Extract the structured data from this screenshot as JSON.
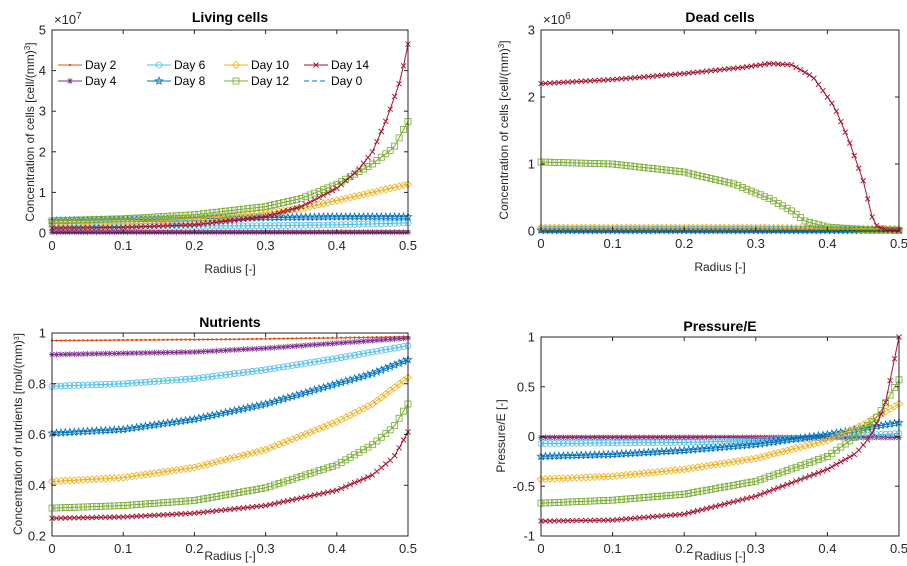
{
  "legend": {
    "entries": [
      {
        "label": "Day 2",
        "color": "#D95319",
        "marker": "dot",
        "dash": false
      },
      {
        "label": "Day 4",
        "color": "#7E2F8E",
        "marker": "asterisk",
        "dash": false
      },
      {
        "label": "Day 6",
        "color": "#4DBEEE",
        "marker": "circle",
        "dash": false
      },
      {
        "label": "Day 8",
        "color": "#0072BD",
        "marker": "star",
        "dash": false
      },
      {
        "label": "Day 10",
        "color": "#EDB120",
        "marker": "diamond",
        "dash": false
      },
      {
        "label": "Day 12",
        "color": "#77AC30",
        "marker": "square",
        "dash": false
      },
      {
        "label": "Day 14",
        "color": "#A2142F",
        "marker": "cross",
        "dash": false
      },
      {
        "label": "Day 0",
        "color": "#0072BD",
        "marker": "none",
        "dash": true
      }
    ]
  },
  "chart_data": [
    {
      "type": "line",
      "title": "Living cells",
      "xlabel": "Radius [-]",
      "ylabel": "Concentration of cells [cell/(mm)$^3$]",
      "ylabel_text": "Concentration of cells [cell/(mm)",
      "ylabel_sup": "3",
      "ylabel_close": "]",
      "multiplier_base": "×10",
      "multiplier_exp": "7",
      "xlim": [
        0,
        0.5
      ],
      "ylim": [
        0,
        5
      ],
      "xticks": [
        0,
        0.1,
        0.2,
        0.3,
        0.4,
        0.5
      ],
      "xtick_labels": [
        "0",
        "0.1",
        "0.2",
        "0.3",
        "0.4",
        "0.5"
      ],
      "yticks": [
        0,
        1,
        2,
        3,
        4,
        5
      ],
      "ytick_labels": [
        "0",
        "1",
        "2",
        "3",
        "4",
        "5"
      ],
      "legend_position": "top-left",
      "series": [
        {
          "name": "Day 2",
          "points": [
            [
              0,
              0.05
            ],
            [
              0.5,
              0.05
            ]
          ]
        },
        {
          "name": "Day 4",
          "points": [
            [
              0,
              0.02
            ],
            [
              0.5,
              0.02
            ]
          ]
        },
        {
          "name": "Day 6",
          "points": [
            [
              0,
              0.15
            ],
            [
              0.3,
              0.18
            ],
            [
              0.4,
              0.2
            ],
            [
              0.5,
              0.25
            ]
          ]
        },
        {
          "name": "Day 8",
          "points": [
            [
              0,
              0.3
            ],
            [
              0.3,
              0.38
            ],
            [
              0.4,
              0.4
            ],
            [
              0.5,
              0.4
            ]
          ]
        },
        {
          "name": "Day 10",
          "points": [
            [
              0,
              0.25
            ],
            [
              0.1,
              0.28
            ],
            [
              0.2,
              0.35
            ],
            [
              0.3,
              0.5
            ],
            [
              0.35,
              0.6
            ],
            [
              0.4,
              0.8
            ],
            [
              0.45,
              1.0
            ],
            [
              0.5,
              1.2
            ]
          ]
        },
        {
          "name": "Day 12",
          "points": [
            [
              0,
              0.3
            ],
            [
              0.1,
              0.35
            ],
            [
              0.2,
              0.45
            ],
            [
              0.3,
              0.65
            ],
            [
              0.35,
              0.85
            ],
            [
              0.4,
              1.2
            ],
            [
              0.45,
              1.7
            ],
            [
              0.48,
              2.1
            ],
            [
              0.5,
              2.75
            ]
          ]
        },
        {
          "name": "Day 14",
          "points": [
            [
              0,
              0.12
            ],
            [
              0.1,
              0.14
            ],
            [
              0.2,
              0.2
            ],
            [
              0.3,
              0.4
            ],
            [
              0.35,
              0.65
            ],
            [
              0.4,
              1.1
            ],
            [
              0.43,
              1.55
            ],
            [
              0.45,
              2.0
            ],
            [
              0.47,
              2.8
            ],
            [
              0.49,
              3.8
            ],
            [
              0.5,
              4.65
            ]
          ]
        }
      ]
    },
    {
      "type": "line",
      "title": "Dead cells",
      "xlabel": "Radius [-]",
      "ylabel": "Concentration of cells [cell/(mm)$^3$]",
      "ylabel_text": "Concentration of cells [cell/(mm)",
      "ylabel_sup": "3",
      "ylabel_close": "]",
      "multiplier_base": "×10",
      "multiplier_exp": "6",
      "xlim": [
        0,
        0.5
      ],
      "ylim": [
        0,
        3
      ],
      "xticks": [
        0,
        0.1,
        0.2,
        0.3,
        0.4,
        0.5
      ],
      "xtick_labels": [
        "0",
        "0.1",
        "0.2",
        "0.3",
        "0.4",
        "0.5"
      ],
      "yticks": [
        0,
        1,
        2,
        3
      ],
      "ytick_labels": [
        "0",
        "1",
        "2",
        "3"
      ],
      "series": [
        {
          "name": "Day 2",
          "points": [
            [
              0,
              0.0
            ],
            [
              0.5,
              0.0
            ]
          ]
        },
        {
          "name": "Day 4",
          "points": [
            [
              0,
              0.01
            ],
            [
              0.5,
              0.01
            ]
          ]
        },
        {
          "name": "Day 6",
          "points": [
            [
              0,
              0.03
            ],
            [
              0.3,
              0.03
            ],
            [
              0.4,
              0.02
            ],
            [
              0.5,
              0.01
            ]
          ]
        },
        {
          "name": "Day 8",
          "points": [
            [
              0,
              0.01
            ],
            [
              0.5,
              0.01
            ]
          ]
        },
        {
          "name": "Day 10",
          "points": [
            [
              0,
              0.05
            ],
            [
              0.3,
              0.05
            ],
            [
              0.4,
              0.04
            ],
            [
              0.5,
              0.03
            ]
          ]
        },
        {
          "name": "Day 12",
          "points": [
            [
              0,
              1.03
            ],
            [
              0.1,
              1.0
            ],
            [
              0.2,
              0.88
            ],
            [
              0.27,
              0.7
            ],
            [
              0.32,
              0.48
            ],
            [
              0.35,
              0.3
            ],
            [
              0.37,
              0.14
            ],
            [
              0.4,
              0.06
            ],
            [
              0.45,
              0.02
            ],
            [
              0.5,
              0.01
            ]
          ]
        },
        {
          "name": "Day 14",
          "points": [
            [
              0,
              2.2
            ],
            [
              0.1,
              2.26
            ],
            [
              0.2,
              2.35
            ],
            [
              0.28,
              2.44
            ],
            [
              0.32,
              2.5
            ],
            [
              0.35,
              2.48
            ],
            [
              0.38,
              2.3
            ],
            [
              0.41,
              1.85
            ],
            [
              0.43,
              1.35
            ],
            [
              0.45,
              0.75
            ],
            [
              0.465,
              0.1
            ],
            [
              0.48,
              0.02
            ],
            [
              0.5,
              0.01
            ]
          ]
        }
      ]
    },
    {
      "type": "line",
      "title": "Nutrients",
      "xlabel": "Radius [-]",
      "ylabel": "Concentration of nutrients [mol/(mm)$^3$]",
      "ylabel_text": "Concentration of nutrients [mol/(mm)",
      "ylabel_sup": "3",
      "ylabel_close": "]",
      "multiplier_base": "",
      "multiplier_exp": "",
      "xlim": [
        0,
        0.5
      ],
      "ylim": [
        0.2,
        1.0
      ],
      "xticks": [
        0,
        0.1,
        0.2,
        0.3,
        0.4,
        0.5
      ],
      "xtick_labels": [
        "0",
        "0.1",
        "0.2",
        "0.3",
        "0.4",
        "0.5"
      ],
      "yticks": [
        0.2,
        0.4,
        0.6,
        0.8,
        1.0
      ],
      "ytick_labels": [
        "0.2",
        "0.4",
        "0.6",
        "0.8",
        "1"
      ],
      "series": [
        {
          "name": "Day 0",
          "points": [
            [
              0,
              1.0
            ],
            [
              0.5,
              1.0
            ]
          ]
        },
        {
          "name": "Day 2",
          "points": [
            [
              0,
              0.97
            ],
            [
              0.25,
              0.975
            ],
            [
              0.5,
              0.985
            ]
          ]
        },
        {
          "name": "Day 4",
          "points": [
            [
              0,
              0.915
            ],
            [
              0.2,
              0.925
            ],
            [
              0.3,
              0.94
            ],
            [
              0.4,
              0.96
            ],
            [
              0.5,
              0.98
            ]
          ]
        },
        {
          "name": "Day 6",
          "points": [
            [
              0,
              0.79
            ],
            [
              0.1,
              0.8
            ],
            [
              0.2,
              0.82
            ],
            [
              0.3,
              0.855
            ],
            [
              0.4,
              0.9
            ],
            [
              0.5,
              0.95
            ]
          ]
        },
        {
          "name": "Day 8",
          "points": [
            [
              0,
              0.605
            ],
            [
              0.1,
              0.62
            ],
            [
              0.2,
              0.66
            ],
            [
              0.3,
              0.72
            ],
            [
              0.4,
              0.8
            ],
            [
              0.45,
              0.84
            ],
            [
              0.5,
              0.895
            ]
          ]
        },
        {
          "name": "Day 10",
          "points": [
            [
              0,
              0.415
            ],
            [
              0.1,
              0.43
            ],
            [
              0.2,
              0.47
            ],
            [
              0.3,
              0.54
            ],
            [
              0.4,
              0.65
            ],
            [
              0.45,
              0.72
            ],
            [
              0.5,
              0.825
            ]
          ]
        },
        {
          "name": "Day 12",
          "points": [
            [
              0,
              0.31
            ],
            [
              0.1,
              0.32
            ],
            [
              0.2,
              0.34
            ],
            [
              0.3,
              0.39
            ],
            [
              0.4,
              0.48
            ],
            [
              0.45,
              0.56
            ],
            [
              0.48,
              0.63
            ],
            [
              0.5,
              0.72
            ]
          ]
        },
        {
          "name": "Day 14",
          "points": [
            [
              0,
              0.27
            ],
            [
              0.1,
              0.275
            ],
            [
              0.2,
              0.29
            ],
            [
              0.3,
              0.32
            ],
            [
              0.4,
              0.38
            ],
            [
              0.45,
              0.44
            ],
            [
              0.48,
              0.51
            ],
            [
              0.5,
              0.61
            ]
          ]
        }
      ]
    },
    {
      "type": "line",
      "title": "Pressure/E",
      "xlabel": "Radius [-]",
      "ylabel": "Pressure/E [-]",
      "ylabel_text": "Pressure/E [-]",
      "ylabel_sup": "",
      "ylabel_close": "",
      "multiplier_base": "",
      "multiplier_exp": "",
      "xlim": [
        0,
        0.5
      ],
      "ylim": [
        -1,
        1
      ],
      "xticks": [
        0,
        0.1,
        0.2,
        0.3,
        0.4,
        0.5
      ],
      "xtick_labels": [
        "0",
        "0.1",
        "0.2",
        "0.3",
        "0.4",
        "0.5"
      ],
      "yticks": [
        -1,
        -0.5,
        0,
        0.5,
        1
      ],
      "ytick_labels": [
        "-1",
        "-0.5",
        "0",
        "0.5",
        "1"
      ],
      "series": [
        {
          "name": "Day 2",
          "points": [
            [
              0,
              0.0
            ],
            [
              0.5,
              0.0
            ]
          ]
        },
        {
          "name": "Day 4",
          "points": [
            [
              0,
              -0.01
            ],
            [
              0.5,
              -0.01
            ]
          ]
        },
        {
          "name": "Day 6",
          "points": [
            [
              0,
              -0.07
            ],
            [
              0.2,
              -0.06
            ],
            [
              0.3,
              -0.04
            ],
            [
              0.4,
              -0.01
            ],
            [
              0.5,
              0.03
            ]
          ]
        },
        {
          "name": "Day 8",
          "points": [
            [
              0,
              -0.2
            ],
            [
              0.1,
              -0.18
            ],
            [
              0.2,
              -0.14
            ],
            [
              0.3,
              -0.08
            ],
            [
              0.4,
              0.02
            ],
            [
              0.5,
              0.14
            ]
          ]
        },
        {
          "name": "Day 10",
          "points": [
            [
              0,
              -0.43
            ],
            [
              0.1,
              -0.4
            ],
            [
              0.2,
              -0.33
            ],
            [
              0.3,
              -0.22
            ],
            [
              0.4,
              -0.04
            ],
            [
              0.45,
              0.12
            ],
            [
              0.5,
              0.33
            ]
          ]
        },
        {
          "name": "Day 12",
          "points": [
            [
              0,
              -0.67
            ],
            [
              0.1,
              -0.64
            ],
            [
              0.2,
              -0.58
            ],
            [
              0.3,
              -0.45
            ],
            [
              0.4,
              -0.2
            ],
            [
              0.44,
              0.0
            ],
            [
              0.47,
              0.2
            ],
            [
              0.5,
              0.57
            ]
          ]
        },
        {
          "name": "Day 14",
          "points": [
            [
              0,
              -0.85
            ],
            [
              0.1,
              -0.84
            ],
            [
              0.2,
              -0.78
            ],
            [
              0.3,
              -0.6
            ],
            [
              0.4,
              -0.33
            ],
            [
              0.44,
              -0.17
            ],
            [
              0.46,
              0.0
            ],
            [
              0.48,
              0.3
            ],
            [
              0.5,
              1.0
            ]
          ]
        }
      ]
    }
  ]
}
